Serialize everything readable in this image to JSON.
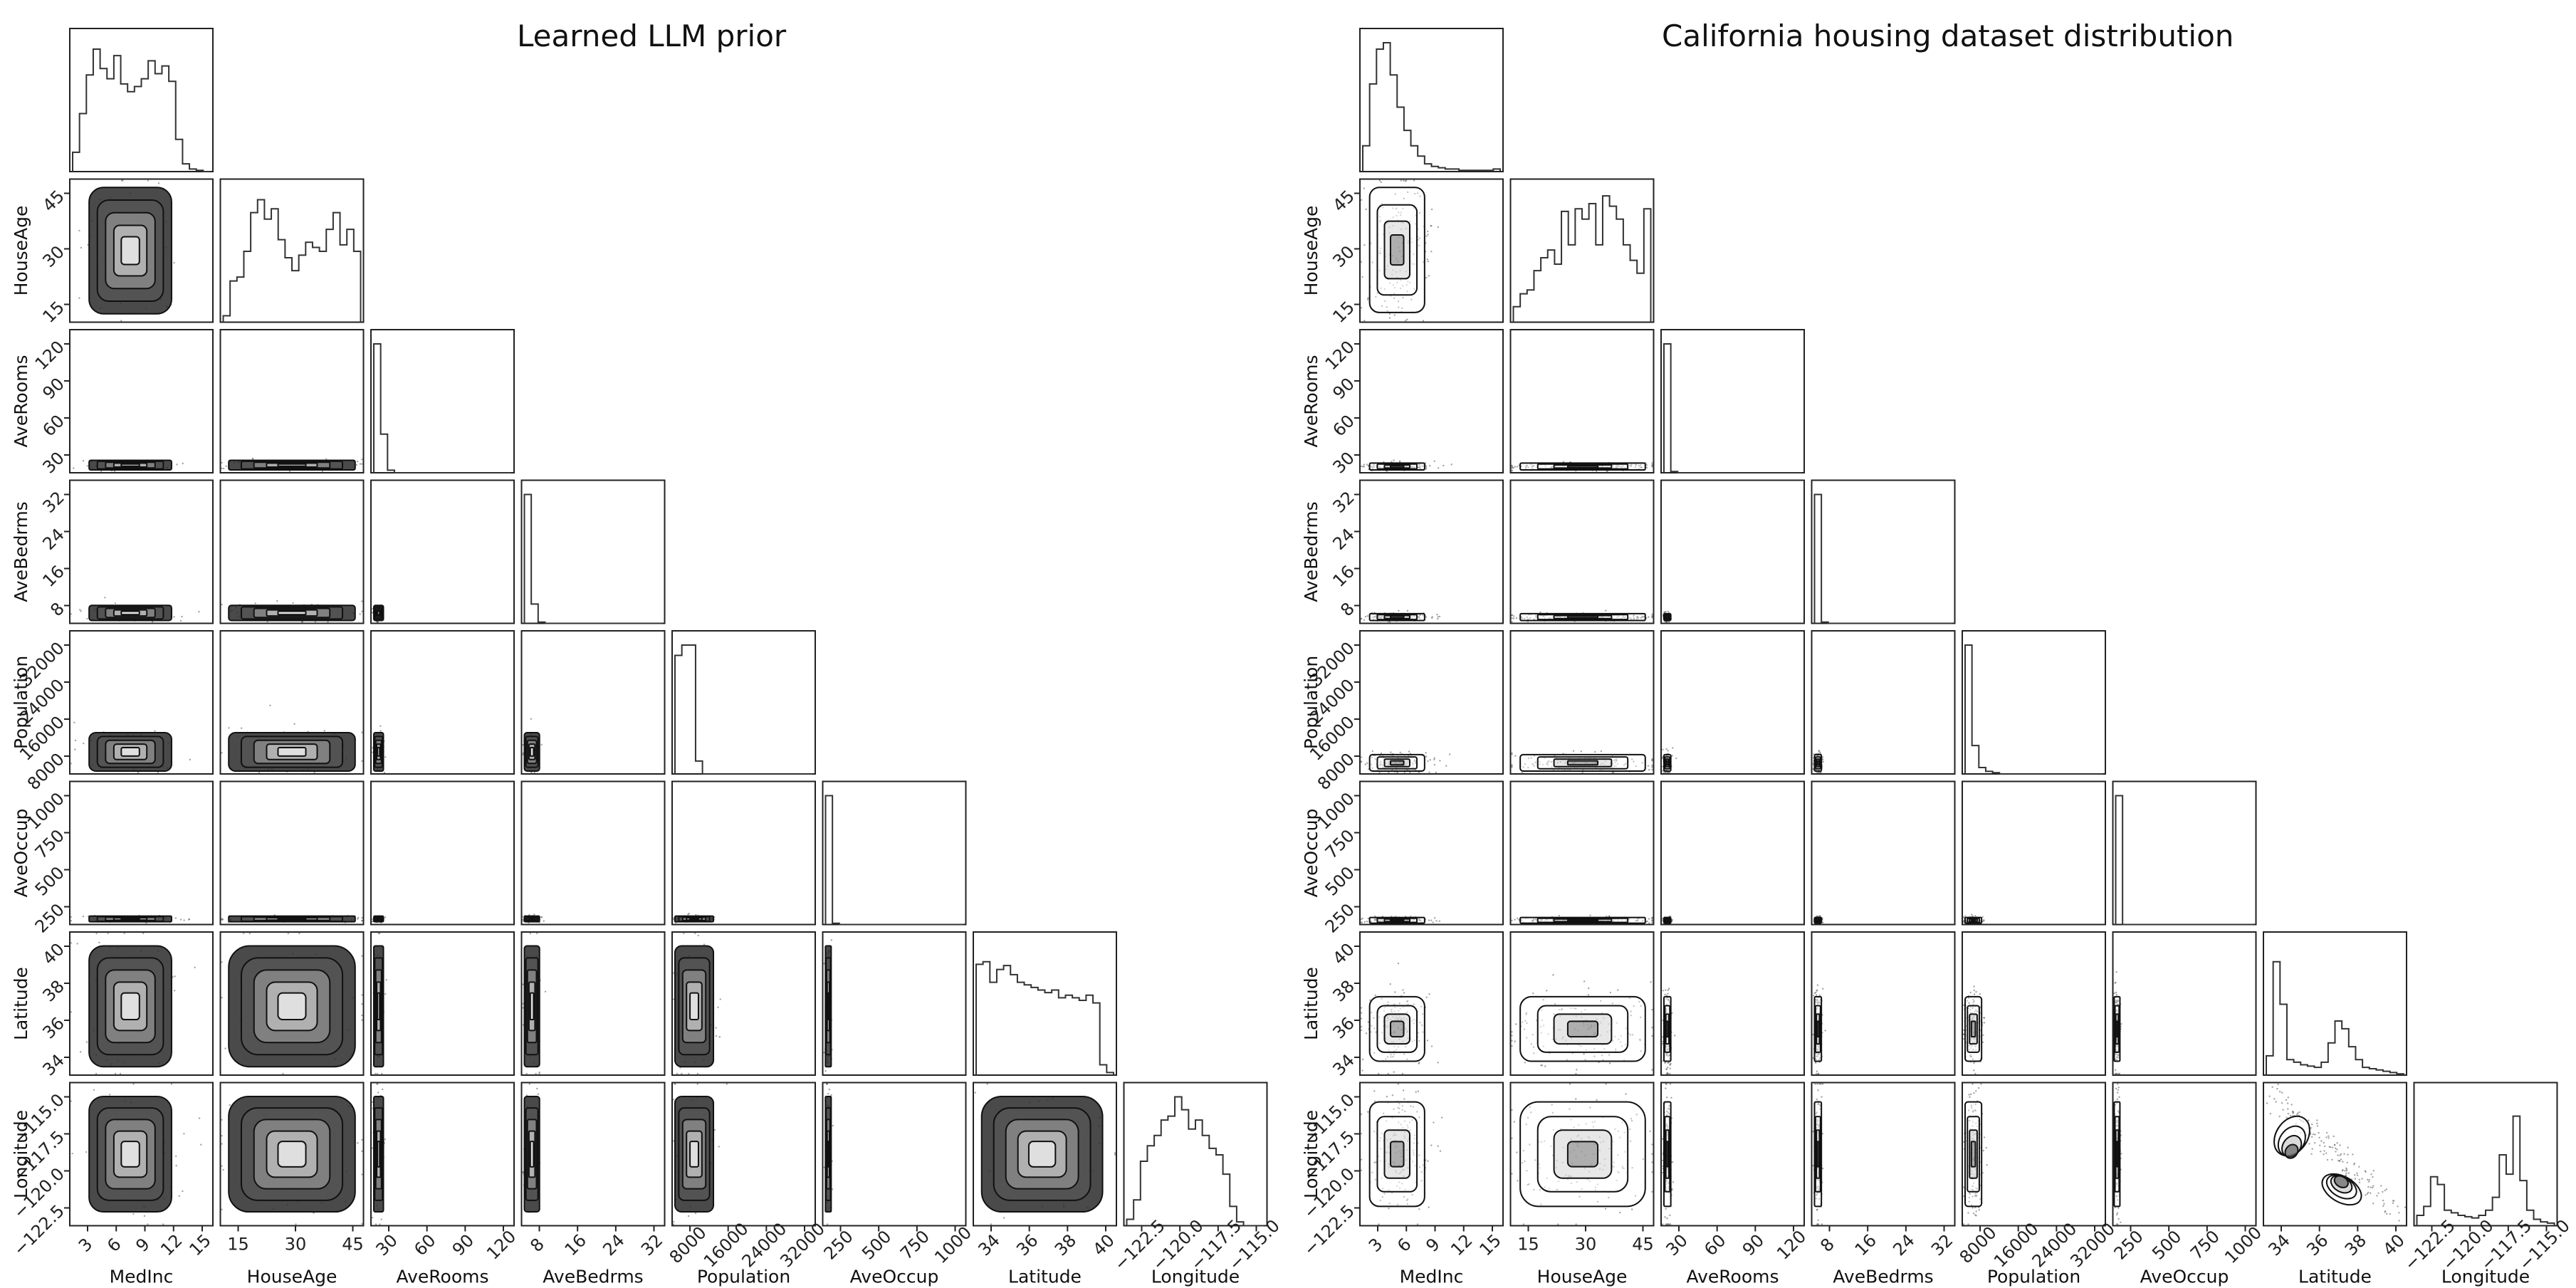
{
  "titles": {
    "left": "Learned LLM prior",
    "right": "California housing dataset distribution"
  },
  "chart_data": [
    {
      "type": "corner",
      "title": "Learned LLM prior",
      "variables": [
        "MedInc",
        "HouseAge",
        "AveRooms",
        "AveBedrms",
        "Population",
        "AveOccup",
        "Latitude",
        "Longitude"
      ],
      "x_ticks": [
        [
          "3",
          "6",
          "9",
          "12",
          "15"
        ],
        [
          "15",
          "30",
          "45"
        ],
        [
          "30",
          "60",
          "90",
          "120"
        ],
        [
          "8",
          "16",
          "24",
          "32"
        ],
        [
          "8000",
          "16000",
          "24000",
          "32000"
        ],
        [
          "250",
          "500",
          "750",
          "1000"
        ],
        [
          "34",
          "36",
          "38",
          "40"
        ],
        [
          "−122.5",
          "−120.0",
          "−117.5",
          "−115.0"
        ]
      ],
      "y_ticks": {
        "HouseAge": [
          "15",
          "30",
          "45"
        ],
        "AveRooms": [
          "30",
          "60",
          "90",
          "120"
        ],
        "AveBedrms": [
          "8",
          "16",
          "24",
          "32"
        ],
        "Population": [
          "8000",
          "16000",
          "24000",
          "32000"
        ],
        "AveOccup": [
          "250",
          "500",
          "750",
          "1000"
        ],
        "Latitude": [
          "34",
          "36",
          "38",
          "40"
        ],
        "Longitude": [
          "−122.5",
          "−120.0",
          "−117.5",
          "−115.0"
        ]
      },
      "ranges": {
        "MedInc": [
          0.5,
          15.5
        ],
        "HouseAge": [
          1,
          52
        ],
        "AveRooms": [
          1,
          142
        ],
        "AveBedrms": [
          0.3,
          34
        ],
        "Population": [
          3,
          35700
        ],
        "AveOccup": [
          0.7,
          1244
        ],
        "Latitude": [
          32.5,
          42
        ],
        "Longitude": [
          -124.4,
          -114.3
        ]
      },
      "diagonal_histograms": [
        {
          "variable": "MedInc",
          "heights": [
            0.15,
            0.45,
            0.75,
            0.95,
            0.8,
            0.72,
            0.9,
            0.68,
            0.62,
            0.66,
            0.72,
            0.86,
            0.76,
            0.82,
            0.7,
            0.25,
            0.06,
            0.02,
            0.01,
            0.0
          ]
        },
        {
          "variable": "HouseAge",
          "heights": [
            0.05,
            0.32,
            0.35,
            0.55,
            0.85,
            0.95,
            0.8,
            0.88,
            0.64,
            0.5,
            0.4,
            0.52,
            0.62,
            0.58,
            0.55,
            0.72,
            0.85,
            0.6,
            0.72,
            0.55
          ]
        },
        {
          "variable": "AveRooms",
          "heights": [
            1.0,
            0.3,
            0.02,
            0,
            0,
            0,
            0,
            0,
            0,
            0,
            0,
            0,
            0,
            0,
            0,
            0,
            0,
            0,
            0,
            0
          ]
        },
        {
          "variable": "AveBedrms",
          "heights": [
            1.0,
            0.15,
            0.01,
            0,
            0,
            0,
            0,
            0,
            0,
            0,
            0,
            0,
            0,
            0,
            0,
            0,
            0,
            0,
            0,
            0
          ]
        },
        {
          "variable": "Population",
          "heights": [
            0.92,
            1.0,
            1.0,
            0.1,
            0,
            0,
            0,
            0,
            0,
            0,
            0,
            0,
            0,
            0,
            0,
            0,
            0,
            0,
            0,
            0
          ]
        },
        {
          "variable": "AveOccup",
          "heights": [
            1.0,
            0.01,
            0,
            0,
            0,
            0,
            0,
            0,
            0,
            0,
            0,
            0,
            0,
            0,
            0,
            0,
            0,
            0,
            0,
            0
          ]
        },
        {
          "variable": "Latitude",
          "heights": [
            0.86,
            0.88,
            0.72,
            0.82,
            0.85,
            0.78,
            0.72,
            0.7,
            0.68,
            0.66,
            0.64,
            0.66,
            0.6,
            0.62,
            0.6,
            0.58,
            0.62,
            0.56,
            0.08,
            0.02
          ]
        },
        {
          "variable": "Longitude",
          "heights": [
            0.05,
            0.2,
            0.5,
            0.62,
            0.7,
            0.82,
            0.85,
            1.0,
            0.9,
            0.75,
            0.82,
            0.7,
            0.6,
            0.55,
            0.4,
            0.15,
            0.03,
            0.0,
            0.0,
            0.0
          ]
        }
      ]
    },
    {
      "type": "corner",
      "title": "California housing dataset distribution",
      "variables": [
        "MedInc",
        "HouseAge",
        "AveRooms",
        "AveBedrms",
        "Population",
        "AveOccup",
        "Latitude",
        "Longitude"
      ],
      "x_ticks": [
        [
          "3",
          "6",
          "9",
          "12",
          "15"
        ],
        [
          "15",
          "30",
          "45"
        ],
        [
          "30",
          "60",
          "90",
          "120"
        ],
        [
          "8",
          "16",
          "24",
          "32"
        ],
        [
          "8000",
          "16000",
          "24000",
          "32000"
        ],
        [
          "250",
          "500",
          "750",
          "1000"
        ],
        [
          "34",
          "36",
          "38",
          "40"
        ],
        [
          "−122.5",
          "−120.0",
          "−117.5",
          "−115.0"
        ]
      ],
      "y_ticks": {
        "HouseAge": [
          "15",
          "30",
          "45"
        ],
        "AveRooms": [
          "30",
          "60",
          "90",
          "120"
        ],
        "AveBedrms": [
          "8",
          "16",
          "24",
          "32"
        ],
        "Population": [
          "8000",
          "16000",
          "24000",
          "32000"
        ],
        "AveOccup": [
          "250",
          "500",
          "750",
          "1000"
        ],
        "Latitude": [
          "34",
          "36",
          "38",
          "40"
        ],
        "Longitude": [
          "−122.5",
          "−120.0",
          "−117.5",
          "−115.0"
        ]
      },
      "ranges": {
        "MedInc": [
          0.5,
          15.5
        ],
        "HouseAge": [
          1,
          52
        ],
        "AveRooms": [
          1,
          142
        ],
        "AveBedrms": [
          0.3,
          34
        ],
        "Population": [
          3,
          35700
        ],
        "AveOccup": [
          0.7,
          1244
        ],
        "Latitude": [
          32.5,
          42
        ],
        "Longitude": [
          -124.4,
          -114.3
        ]
      },
      "diagonal_histograms": [
        {
          "variable": "MedInc",
          "heights": [
            0.2,
            0.68,
            0.95,
            1.0,
            0.75,
            0.5,
            0.32,
            0.2,
            0.12,
            0.06,
            0.04,
            0.03,
            0.02,
            0.02,
            0.01,
            0.01,
            0.01,
            0.01,
            0.01,
            0.02
          ]
        },
        {
          "variable": "HouseAge",
          "heights": [
            0.12,
            0.22,
            0.25,
            0.4,
            0.5,
            0.56,
            0.45,
            0.86,
            0.6,
            0.88,
            0.8,
            0.92,
            0.6,
            0.98,
            0.9,
            0.8,
            0.6,
            0.48,
            0.38,
            0.88
          ]
        },
        {
          "variable": "AveRooms",
          "heights": [
            1.0,
            0.01,
            0,
            0,
            0,
            0,
            0,
            0,
            0,
            0,
            0,
            0,
            0,
            0,
            0,
            0,
            0,
            0,
            0,
            0
          ]
        },
        {
          "variable": "AveBedrms",
          "heights": [
            1.0,
            0.01,
            0,
            0,
            0,
            0,
            0,
            0,
            0,
            0,
            0,
            0,
            0,
            0,
            0,
            0,
            0,
            0,
            0,
            0
          ]
        },
        {
          "variable": "Population",
          "heights": [
            1.0,
            0.22,
            0.05,
            0.02,
            0.01,
            0,
            0,
            0,
            0,
            0,
            0,
            0,
            0,
            0,
            0,
            0,
            0,
            0,
            0,
            0
          ]
        },
        {
          "variable": "AveOccup",
          "heights": [
            1.0,
            0,
            0,
            0,
            0,
            0,
            0,
            0,
            0,
            0,
            0,
            0,
            0,
            0,
            0,
            0,
            0,
            0,
            0,
            0
          ]
        },
        {
          "variable": "Latitude",
          "heights": [
            0.15,
            0.88,
            0.55,
            0.12,
            0.1,
            0.08,
            0.07,
            0.06,
            0.1,
            0.25,
            0.42,
            0.36,
            0.22,
            0.12,
            0.06,
            0.05,
            0.04,
            0.03,
            0.02,
            0.01
          ]
        },
        {
          "variable": "Longitude",
          "heights": [
            0.08,
            0.15,
            0.38,
            0.32,
            0.12,
            0.1,
            0.08,
            0.07,
            0.06,
            0.08,
            0.12,
            0.22,
            0.55,
            0.4,
            0.85,
            0.35,
            0.12,
            0.05,
            0.03,
            0.02
          ]
        }
      ]
    }
  ]
}
